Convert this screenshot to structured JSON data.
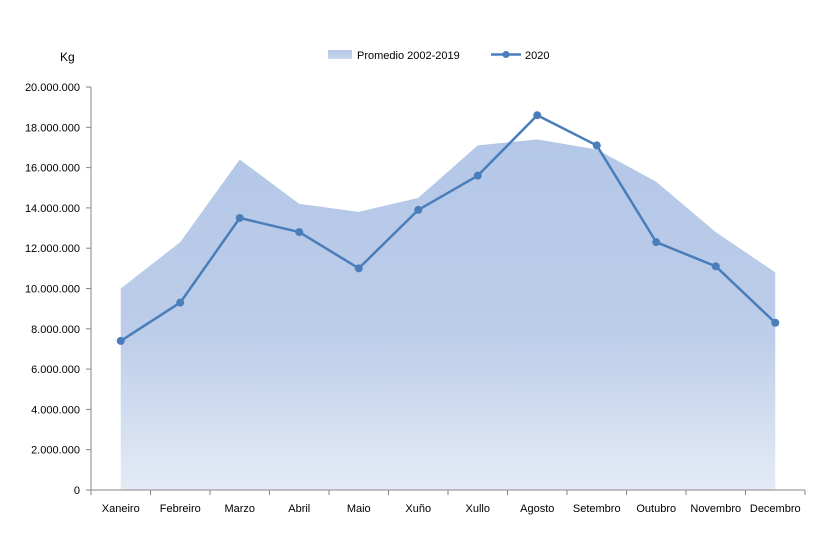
{
  "chart_data": {
    "type": "line",
    "ylabel": "Kg",
    "categories": [
      "Xaneiro",
      "Febreiro",
      "Marzo",
      "Abril",
      "Maio",
      "Xuño",
      "Xullo",
      "Agosto",
      "Setembro",
      "Outubro",
      "Novembro",
      "Decembro"
    ],
    "yticks": [
      "0",
      "2.000.000",
      "4.000.000",
      "6.000.000",
      "8.000.000",
      "10.000.000",
      "12.000.000",
      "14.000.000",
      "16.000.000",
      "18.000.000",
      "20.000.000"
    ],
    "ylim": [
      0,
      20000000
    ],
    "grid": false,
    "legend_position": "top-center",
    "series": [
      {
        "name": "Promedio 2002-2019",
        "kind": "area",
        "color": "#b4c7e7",
        "values": [
          10000000,
          12300000,
          16400000,
          14200000,
          13800000,
          14500000,
          17100000,
          17400000,
          16900000,
          15300000,
          12800000,
          10800000
        ]
      },
      {
        "name": "2020",
        "kind": "line",
        "color": "#4a7ebb",
        "values": [
          7400000,
          9300000,
          13500000,
          12800000,
          11000000,
          13900000,
          15600000,
          18600000,
          17100000,
          12300000,
          11100000,
          8300000
        ]
      }
    ]
  }
}
